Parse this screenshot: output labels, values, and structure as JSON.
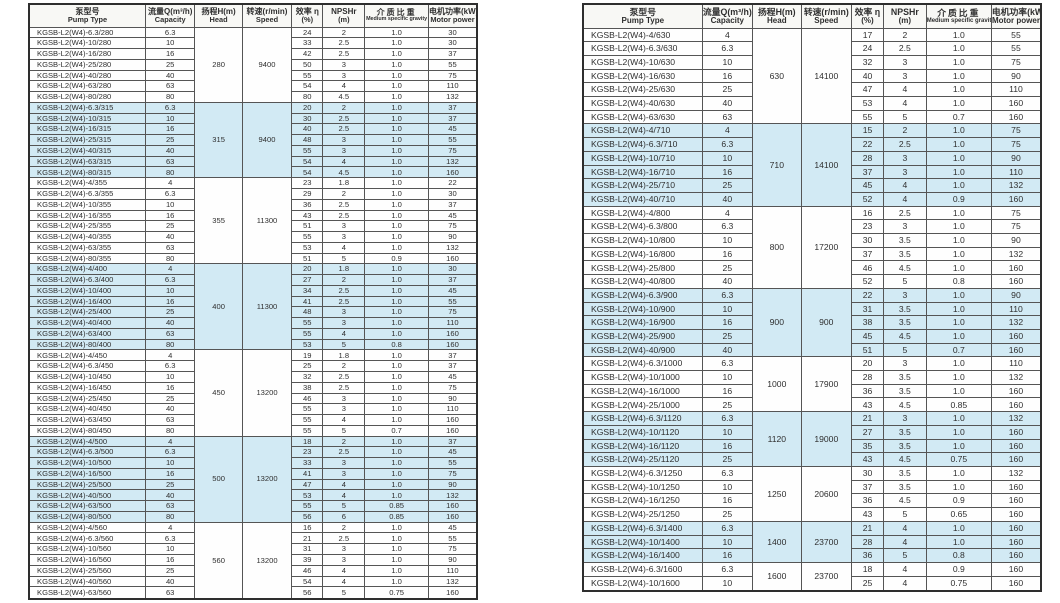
{
  "colors": {
    "row_highlight": "#d2eaf4",
    "header_bg": "#f8f8f5",
    "border": "#555555",
    "text": "#2f2f2f",
    "page_bg": "#ffffff"
  },
  "columns": [
    {
      "key": "model",
      "cn": "泵型号",
      "en": "Pump Type"
    },
    {
      "key": "capacity",
      "cn": "流量Q(m³/h)",
      "en": "Capacity"
    },
    {
      "key": "head",
      "cn": "扬程H(m)",
      "en": "Head"
    },
    {
      "key": "speed",
      "cn": "转速(r/min)",
      "en": "Speed"
    },
    {
      "key": "eff",
      "cn": "效率 η",
      "en": "(%)"
    },
    {
      "key": "npshr",
      "cn": "NPSHr",
      "en": "(m)"
    },
    {
      "key": "gravity",
      "cn": "介质比重",
      "en": "Medium specific gravity"
    },
    {
      "key": "power",
      "cn": "电机功率(kW)",
      "en": "Motor power"
    }
  ],
  "tables": [
    {
      "name": "left",
      "groups": [
        {
          "head": "280",
          "speed": "9400",
          "rows": [
            [
              "KGSB-L2(W4)-6.3/280",
              "6.3",
              "24",
              "2",
              "1.0",
              "30"
            ],
            [
              "KGSB-L2(W4)-10/280",
              "10",
              "33",
              "2.5",
              "1.0",
              "30"
            ],
            [
              "KGSB-L2(W4)-16/280",
              "16",
              "42",
              "2.5",
              "1.0",
              "37"
            ],
            [
              "KGSB-L2(W4)-25/280",
              "25",
              "50",
              "3",
              "1.0",
              "55"
            ],
            [
              "KGSB-L2(W4)-40/280",
              "40",
              "55",
              "3",
              "1.0",
              "75"
            ],
            [
              "KGSB-L2(W4)-63/280",
              "63",
              "54",
              "4",
              "1.0",
              "110"
            ],
            [
              "KGSB-L2(W4)-80/280",
              "80",
              "80",
              "4.5",
              "1.0",
              "132"
            ]
          ]
        },
        {
          "head": "315",
          "speed": "9400",
          "rows": [
            [
              "KGSB-L2(W4)-6.3/315",
              "6.3",
              "20",
              "2",
              "1.0",
              "37"
            ],
            [
              "KGSB-L2(W4)-10/315",
              "10",
              "30",
              "2.5",
              "1.0",
              "37"
            ],
            [
              "KGSB-L2(W4)-16/315",
              "16",
              "40",
              "2.5",
              "1.0",
              "45"
            ],
            [
              "KGSB-L2(W4)-25/315",
              "25",
              "48",
              "3",
              "1.0",
              "55"
            ],
            [
              "KGSB-L2(W4)-40/315",
              "40",
              "55",
              "3",
              "1.0",
              "75"
            ],
            [
              "KGSB-L2(W4)-63/315",
              "63",
              "54",
              "4",
              "1.0",
              "132"
            ],
            [
              "KGSB-L2(W4)-80/315",
              "80",
              "54",
              "4.5",
              "1.0",
              "160"
            ]
          ]
        },
        {
          "head": "355",
          "speed": "11300",
          "rows": [
            [
              "KGSB-L2(W4)-4/355",
              "4",
              "23",
              "1.8",
              "1.0",
              "22"
            ],
            [
              "KGSB-L2(W4)-6.3/355",
              "6.3",
              "29",
              "2",
              "1.0",
              "30"
            ],
            [
              "KGSB-L2(W4)-10/355",
              "10",
              "36",
              "2.5",
              "1.0",
              "37"
            ],
            [
              "KGSB-L2(W4)-16/355",
              "16",
              "43",
              "2.5",
              "1.0",
              "45"
            ],
            [
              "KGSB-L2(W4)-25/355",
              "25",
              "51",
              "3",
              "1.0",
              "75"
            ],
            [
              "KGSB-L2(W4)-40/355",
              "40",
              "55",
              "3",
              "1.0",
              "90"
            ],
            [
              "KGSB-L2(W4)-63/355",
              "63",
              "53",
              "4",
              "1.0",
              "132"
            ],
            [
              "KGSB-L2(W4)-80/355",
              "80",
              "51",
              "5",
              "0.9",
              "160"
            ]
          ]
        },
        {
          "head": "400",
          "speed": "11300",
          "rows": [
            [
              "KGSB-L2(W4)-4/400",
              "4",
              "20",
              "1.8",
              "1.0",
              "30"
            ],
            [
              "KGSB-L2(W4)-6.3/400",
              "6.3",
              "27",
              "2",
              "1.0",
              "37"
            ],
            [
              "KGSB-L2(W4)-10/400",
              "10",
              "34",
              "2.5",
              "1.0",
              "45"
            ],
            [
              "KGSB-L2(W4)-16/400",
              "16",
              "41",
              "2.5",
              "1.0",
              "55"
            ],
            [
              "KGSB-L2(W4)-25/400",
              "25",
              "48",
              "3",
              "1.0",
              "75"
            ],
            [
              "KGSB-L2(W4)-40/400",
              "40",
              "55",
              "3",
              "1.0",
              "110"
            ],
            [
              "KGSB-L2(W4)-63/400",
              "63",
              "55",
              "4",
              "1.0",
              "160"
            ],
            [
              "KGSB-L2(W4)-80/400",
              "80",
              "53",
              "5",
              "0.8",
              "160"
            ]
          ]
        },
        {
          "head": "450",
          "speed": "13200",
          "rows": [
            [
              "KGSB-L2(W4)-4/450",
              "4",
              "19",
              "1.8",
              "1.0",
              "37"
            ],
            [
              "KGSB-L2(W4)-6.3/450",
              "6.3",
              "25",
              "2",
              "1.0",
              "37"
            ],
            [
              "KGSB-L2(W4)-10/450",
              "10",
              "32",
              "2.5",
              "1.0",
              "45"
            ],
            [
              "KGSB-L2(W4)-16/450",
              "16",
              "38",
              "2.5",
              "1.0",
              "75"
            ],
            [
              "KGSB-L2(W4)-25/450",
              "25",
              "46",
              "3",
              "1.0",
              "90"
            ],
            [
              "KGSB-L2(W4)-40/450",
              "40",
              "55",
              "3",
              "1.0",
              "110"
            ],
            [
              "KGSB-L2(W4)-63/450",
              "63",
              "55",
              "4",
              "1.0",
              "160"
            ],
            [
              "KGSB-L2(W4)-80/450",
              "80",
              "55",
              "5",
              "0.7",
              "160"
            ]
          ]
        },
        {
          "head": "500",
          "speed": "13200",
          "rows": [
            [
              "KGSB-L2(W4)-4/500",
              "4",
              "18",
              "2",
              "1.0",
              "37"
            ],
            [
              "KGSB-L2(W4)-6.3/500",
              "6.3",
              "23",
              "2.5",
              "1.0",
              "45"
            ],
            [
              "KGSB-L2(W4)-10/500",
              "10",
              "33",
              "3",
              "1.0",
              "55"
            ],
            [
              "KGSB-L2(W4)-16/500",
              "16",
              "41",
              "3",
              "1.0",
              "75"
            ],
            [
              "KGSB-L2(W4)-25/500",
              "25",
              "47",
              "4",
              "1.0",
              "90"
            ],
            [
              "KGSB-L2(W4)-40/500",
              "40",
              "53",
              "4",
              "1.0",
              "132"
            ],
            [
              "KGSB-L2(W4)-63/500",
              "63",
              "55",
              "5",
              "0.85",
              "160"
            ],
            [
              "KGSB-L2(W4)-80/500",
              "80",
              "56",
              "6",
              "0.85",
              "160"
            ]
          ]
        },
        {
          "head": "560",
          "speed": "13200",
          "rows": [
            [
              "KGSB-L2(W4)-4/560",
              "4",
              "16",
              "2",
              "1.0",
              "45"
            ],
            [
              "KGSB-L2(W4)-6.3/560",
              "6.3",
              "21",
              "2.5",
              "1.0",
              "55"
            ],
            [
              "KGSB-L2(W4)-10/560",
              "10",
              "31",
              "3",
              "1.0",
              "75"
            ],
            [
              "KGSB-L2(W4)-16/560",
              "16",
              "39",
              "3",
              "1.0",
              "90"
            ],
            [
              "KGSB-L2(W4)-25/560",
              "25",
              "46",
              "4",
              "1.0",
              "110"
            ],
            [
              "KGSB-L2(W4)-40/560",
              "40",
              "54",
              "4",
              "1.0",
              "132"
            ],
            [
              "KGSB-L2(W4)-63/560",
              "63",
              "56",
              "5",
              "0.75",
              "160"
            ]
          ]
        }
      ]
    },
    {
      "name": "right",
      "groups": [
        {
          "head": "630",
          "speed": "14100",
          "rows": [
            [
              "KGSB-L2(W4)-4/630",
              "4",
              "17",
              "2",
              "1.0",
              "55"
            ],
            [
              "KGSB-L2(W4)-6.3/630",
              "6.3",
              "24",
              "2.5",
              "1.0",
              "55"
            ],
            [
              "KGSB-L2(W4)-10/630",
              "10",
              "32",
              "3",
              "1.0",
              "75"
            ],
            [
              "KGSB-L2(W4)-16/630",
              "16",
              "40",
              "3",
              "1.0",
              "90"
            ],
            [
              "KGSB-L2(W4)-25/630",
              "25",
              "47",
              "4",
              "1.0",
              "110"
            ],
            [
              "KGSB-L2(W4)-40/630",
              "40",
              "53",
              "4",
              "1.0",
              "160"
            ],
            [
              "KGSB-L2(W4)-63/630",
              "63",
              "55",
              "5",
              "0.7",
              "160"
            ]
          ]
        },
        {
          "head": "710",
          "speed": "14100",
          "rows": [
            [
              "KGSB-L2(W4)-4/710",
              "4",
              "15",
              "2",
              "1.0",
              "75"
            ],
            [
              "KGSB-L2(W4)-6.3/710",
              "6.3",
              "22",
              "2.5",
              "1.0",
              "75"
            ],
            [
              "KGSB-L2(W4)-10/710",
              "10",
              "28",
              "3",
              "1.0",
              "90"
            ],
            [
              "KGSB-L2(W4)-16/710",
              "16",
              "37",
              "3",
              "1.0",
              "110"
            ],
            [
              "KGSB-L2(W4)-25/710",
              "25",
              "45",
              "4",
              "1.0",
              "132"
            ],
            [
              "KGSB-L2(W4)-40/710",
              "40",
              "52",
              "4",
              "0.9",
              "160"
            ]
          ]
        },
        {
          "head": "800",
          "speed": "17200",
          "rows": [
            [
              "KGSB-L2(W4)-4/800",
              "4",
              "16",
              "2.5",
              "1.0",
              "75"
            ],
            [
              "KGSB-L2(W4)-6.3/800",
              "6.3",
              "23",
              "3",
              "1.0",
              "75"
            ],
            [
              "KGSB-L2(W4)-10/800",
              "10",
              "30",
              "3.5",
              "1.0",
              "90"
            ],
            [
              "KGSB-L2(W4)-16/800",
              "16",
              "37",
              "3.5",
              "1.0",
              "132"
            ],
            [
              "KGSB-L2(W4)-25/800",
              "25",
              "46",
              "4.5",
              "1.0",
              "160"
            ],
            [
              "KGSB-L2(W4)-40/800",
              "40",
              "52",
              "5",
              "0.8",
              "160"
            ]
          ]
        },
        {
          "head": "900",
          "speed": "900",
          "rows": [
            [
              "KGSB-L2(W4)-6.3/900",
              "6.3",
              "22",
              "3",
              "1.0",
              "90"
            ],
            [
              "KGSB-L2(W4)-10/900",
              "10",
              "31",
              "3.5",
              "1.0",
              "110"
            ],
            [
              "KGSB-L2(W4)-16/900",
              "16",
              "38",
              "3.5",
              "1.0",
              "132"
            ],
            [
              "KGSB-L2(W4)-25/900",
              "25",
              "45",
              "4.5",
              "1.0",
              "160"
            ],
            [
              "KGSB-L2(W4)-40/900",
              "40",
              "51",
              "5",
              "0.7",
              "160"
            ]
          ]
        },
        {
          "head": "1000",
          "speed": "17900",
          "rows": [
            [
              "KGSB-L2(W4)-6.3/1000",
              "6.3",
              "20",
              "3",
              "1.0",
              "110"
            ],
            [
              "KGSB-L2(W4)-10/1000",
              "10",
              "28",
              "3.5",
              "1.0",
              "132"
            ],
            [
              "KGSB-L2(W4)-16/1000",
              "16",
              "36",
              "3.5",
              "1.0",
              "160"
            ],
            [
              "KGSB-L2(W4)-25/1000",
              "25",
              "43",
              "4.5",
              "0.85",
              "160"
            ]
          ]
        },
        {
          "head": "1120",
          "speed": "19000",
          "rows": [
            [
              "KGSB-L2(W4)-6.3/1120",
              "6.3",
              "21",
              "3",
              "1.0",
              "132"
            ],
            [
              "KGSB-L2(W4)-10/1120",
              "10",
              "27",
              "3.5",
              "1.0",
              "160"
            ],
            [
              "KGSB-L2(W4)-16/1120",
              "16",
              "35",
              "3.5",
              "1.0",
              "160"
            ],
            [
              "KGSB-L2(W4)-25/1120",
              "25",
              "43",
              "4.5",
              "0.75",
              "160"
            ]
          ]
        },
        {
          "head": "1250",
          "speed": "20600",
          "rows": [
            [
              "KGSB-L2(W4)-6.3/1250",
              "6.3",
              "30",
              "3.5",
              "1.0",
              "132"
            ],
            [
              "KGSB-L2(W4)-10/1250",
              "10",
              "37",
              "3.5",
              "1.0",
              "160"
            ],
            [
              "KGSB-L2(W4)-16/1250",
              "16",
              "36",
              "4.5",
              "0.9",
              "160"
            ],
            [
              "KGSB-L2(W4)-25/1250",
              "25",
              "43",
              "5",
              "0.65",
              "160"
            ]
          ]
        },
        {
          "head": "1400",
          "speed": "23700",
          "rows": [
            [
              "KGSB-L2(W4)-6.3/1400",
              "6.3",
              "21",
              "4",
              "1.0",
              "160"
            ],
            [
              "KGSB-L2(W4)-10/1400",
              "10",
              "28",
              "4",
              "1.0",
              "160"
            ],
            [
              "KGSB-L2(W4)-16/1400",
              "16",
              "36",
              "5",
              "0.8",
              "160"
            ]
          ]
        },
        {
          "head": "1600",
          "speed": "23700",
          "rows": [
            [
              "KGSB-L2(W4)-6.3/1600",
              "6.3",
              "18",
              "4",
              "0.9",
              "160"
            ],
            [
              "KGSB-L2(W4)-10/1600",
              "10",
              "25",
              "4",
              "0.75",
              "160"
            ]
          ]
        }
      ]
    }
  ]
}
